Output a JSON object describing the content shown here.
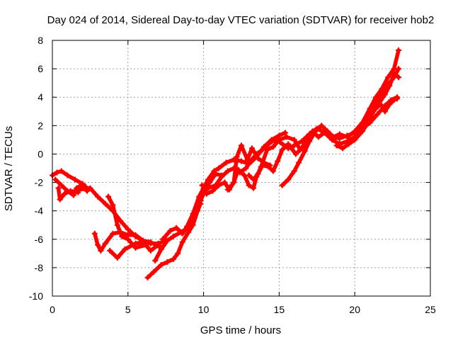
{
  "chart_data": {
    "type": "line",
    "title": "Day 024 of 2014, Sidereal Day-to-day VTEC variation (SDTVAR) for receiver hob2",
    "xlabel": "GPS time / hours",
    "ylabel": "SDTVAR / TECUs",
    "xlim": [
      0,
      25
    ],
    "ylim": [
      -10,
      8
    ],
    "xticks": [
      0,
      5,
      10,
      15,
      20,
      25
    ],
    "yticks": [
      -10,
      -8,
      -6,
      -4,
      -2,
      0,
      2,
      4,
      6,
      8
    ],
    "grid": true,
    "legend": "none",
    "marker": "plus",
    "series_color": "#ff0000",
    "series": [
      {
        "points": [
          [
            0.0,
            -1.5
          ],
          [
            0.3,
            -1.3
          ],
          [
            0.6,
            -1.2
          ],
          [
            1.0,
            -1.5
          ],
          [
            1.5,
            -1.8
          ],
          [
            2.0,
            -2.1
          ],
          [
            2.3,
            -2.6
          ]
        ]
      },
      {
        "points": [
          [
            0.2,
            -1.8
          ],
          [
            0.6,
            -2.2
          ],
          [
            1.0,
            -2.6
          ],
          [
            1.4,
            -2.9
          ],
          [
            1.6,
            -2.4
          ],
          [
            1.9,
            -2.2
          ],
          [
            2.2,
            -2.3
          ]
        ]
      },
      {
        "points": [
          [
            0.4,
            -2.4
          ],
          [
            0.5,
            -3.2
          ],
          [
            0.8,
            -2.8
          ],
          [
            1.2,
            -2.6
          ],
          [
            1.7,
            -2.7
          ]
        ]
      },
      {
        "points": [
          [
            1.8,
            -2.5
          ],
          [
            2.5,
            -2.4
          ],
          [
            3.0,
            -3.0
          ],
          [
            3.5,
            -3.5
          ],
          [
            4.0,
            -4.0
          ],
          [
            4.5,
            -4.7
          ],
          [
            5.0,
            -5.3
          ],
          [
            5.5,
            -5.8
          ],
          [
            6.0,
            -6.1
          ],
          [
            6.5,
            -6.3
          ],
          [
            7.0,
            -6.3
          ],
          [
            7.5,
            -6.1
          ]
        ]
      },
      {
        "points": [
          [
            2.8,
            -5.6
          ],
          [
            3.0,
            -6.4
          ],
          [
            3.2,
            -6.8
          ],
          [
            3.5,
            -6.3
          ],
          [
            4.0,
            -5.6
          ],
          [
            4.5,
            -5.5
          ],
          [
            5.0,
            -5.7
          ],
          [
            5.5,
            -5.7
          ],
          [
            6.0,
            -6.1
          ],
          [
            6.5,
            -6.2
          ],
          [
            7.2,
            -6.6
          ]
        ]
      },
      {
        "points": [
          [
            3.7,
            -3.0
          ],
          [
            4.0,
            -3.6
          ],
          [
            4.3,
            -5.0
          ],
          [
            4.6,
            -5.8
          ],
          [
            5.0,
            -6.0
          ],
          [
            5.5,
            -6.6
          ],
          [
            6.2,
            -6.4
          ]
        ]
      },
      {
        "points": [
          [
            3.8,
            -6.8
          ],
          [
            4.3,
            -7.3
          ],
          [
            4.8,
            -6.7
          ],
          [
            5.5,
            -6.3
          ],
          [
            6.0,
            -6.2
          ],
          [
            6.5,
            -6.8
          ],
          [
            7.0,
            -6.4
          ]
        ]
      },
      {
        "points": [
          [
            6.3,
            -8.7
          ],
          [
            6.7,
            -8.3
          ],
          [
            7.2,
            -7.8
          ],
          [
            7.6,
            -7.6
          ],
          [
            8.0,
            -7.4
          ],
          [
            8.3,
            -7.0
          ],
          [
            8.6,
            -6.2
          ],
          [
            9.0,
            -5.5
          ],
          [
            9.3,
            -5.0
          ],
          [
            9.6,
            -4.0
          ],
          [
            9.8,
            -3.5
          ]
        ]
      },
      {
        "points": [
          [
            6.8,
            -7.5
          ],
          [
            7.2,
            -6.7
          ],
          [
            7.6,
            -6.1
          ],
          [
            8.0,
            -5.8
          ],
          [
            8.5,
            -5.5
          ],
          [
            9.0,
            -5.2
          ],
          [
            9.4,
            -4.5
          ],
          [
            9.8,
            -3.3
          ],
          [
            10.0,
            -2.8
          ],
          [
            10.4,
            -2.0
          ],
          [
            10.8,
            -1.4
          ],
          [
            11.2,
            -1.5
          ]
        ]
      },
      {
        "points": [
          [
            7.3,
            -6.0
          ],
          [
            7.8,
            -5.4
          ],
          [
            8.2,
            -5.2
          ],
          [
            8.6,
            -5.6
          ],
          [
            8.9,
            -5.1
          ],
          [
            9.3,
            -4.2
          ],
          [
            9.7,
            -3.0
          ],
          [
            10.0,
            -2.4
          ],
          [
            10.3,
            -1.8
          ],
          [
            10.7,
            -1.2
          ],
          [
            11.0,
            -1.0
          ],
          [
            11.5,
            -0.6
          ],
          [
            12.0,
            -0.4
          ],
          [
            12.5,
            -0.5
          ],
          [
            13.0,
            -0.7
          ],
          [
            13.5,
            -0.2
          ],
          [
            14.0,
            0.5
          ],
          [
            14.5,
            1.0
          ],
          [
            15.0,
            1.3
          ],
          [
            15.4,
            1.5
          ]
        ]
      },
      {
        "points": [
          [
            9.9,
            -2.2
          ],
          [
            10.3,
            -2.4
          ],
          [
            10.8,
            -2.2
          ],
          [
            11.2,
            -1.6
          ],
          [
            11.6,
            -1.2
          ],
          [
            12.0,
            -1.0
          ],
          [
            12.4,
            -1.3
          ],
          [
            12.8,
            -1.0
          ],
          [
            13.1,
            -0.5
          ],
          [
            13.5,
            0.0
          ],
          [
            13.9,
            0.3
          ],
          [
            14.3,
            0.7
          ],
          [
            14.7,
            1.0
          ],
          [
            15.1,
            0.8
          ],
          [
            15.6,
            0.4
          ],
          [
            16.0,
            0.6
          ],
          [
            16.5,
            0.9
          ],
          [
            17.0,
            1.4
          ],
          [
            17.5,
            1.8
          ],
          [
            18.0,
            1.5
          ],
          [
            18.5,
            1.2
          ],
          [
            19.0,
            1.1
          ],
          [
            19.5,
            1.3
          ],
          [
            20.0,
            1.5
          ],
          [
            20.5,
            2.0
          ],
          [
            21.0,
            2.6
          ],
          [
            21.5,
            3.4
          ],
          [
            22.0,
            4.2
          ],
          [
            22.3,
            4.8
          ],
          [
            22.6,
            5.6
          ],
          [
            22.9,
            5.4
          ]
        ]
      },
      {
        "points": [
          [
            10.2,
            -2.8
          ],
          [
            10.6,
            -2.6
          ],
          [
            11.0,
            -2.2
          ],
          [
            11.4,
            -2.0
          ],
          [
            11.7,
            -2.5
          ],
          [
            12.0,
            -2.0
          ],
          [
            12.3,
            -1.1
          ],
          [
            12.7,
            -1.5
          ],
          [
            13.0,
            -2.2
          ],
          [
            13.3,
            -2.4
          ],
          [
            13.5,
            -1.6
          ],
          [
            13.8,
            -0.9
          ],
          [
            14.2,
            0.3
          ],
          [
            14.6,
            0.5
          ],
          [
            15.0,
            1.0
          ],
          [
            15.5,
            1.2
          ],
          [
            16.0,
            1.0
          ],
          [
            16.4,
            0.3
          ],
          [
            16.8,
            0.9
          ],
          [
            17.2,
            1.6
          ],
          [
            17.6,
            1.2
          ],
          [
            18.0,
            1.5
          ],
          [
            18.5,
            1.0
          ],
          [
            19.0,
            0.7
          ],
          [
            19.5,
            0.9
          ],
          [
            20.0,
            1.2
          ],
          [
            20.5,
            1.8
          ],
          [
            21.0,
            2.2
          ],
          [
            21.5,
            2.8
          ],
          [
            22.0,
            3.4
          ],
          [
            22.4,
            3.8
          ],
          [
            22.8,
            4.0
          ]
        ]
      },
      {
        "points": [
          [
            11.6,
            -2.5
          ],
          [
            12.0,
            -2.0
          ],
          [
            12.2,
            -0.2
          ],
          [
            12.5,
            0.6
          ],
          [
            12.9,
            -0.4
          ],
          [
            13.2,
            0.4
          ],
          [
            13.6,
            -0.3
          ],
          [
            14.0,
            -0.6
          ],
          [
            14.4,
            -0.8
          ]
        ]
      },
      {
        "points": [
          [
            13.0,
            -1.5
          ],
          [
            13.3,
            -1.8
          ],
          [
            13.6,
            -1.4
          ],
          [
            13.9,
            -0.8
          ],
          [
            14.3,
            -0.9
          ],
          [
            14.6,
            -1.2
          ],
          [
            14.9,
            -0.5
          ],
          [
            15.2,
            0.3
          ],
          [
            15.6,
            0.7
          ],
          [
            16.1,
            0.0
          ],
          [
            16.5,
            0.4
          ]
        ]
      },
      {
        "points": [
          [
            15.2,
            -2.2
          ],
          [
            15.6,
            -1.8
          ],
          [
            16.0,
            -1.2
          ],
          [
            16.3,
            -0.6
          ],
          [
            16.7,
            0.2
          ],
          [
            17.0,
            0.9
          ],
          [
            17.4,
            1.6
          ],
          [
            17.8,
            2.0
          ],
          [
            18.2,
            1.6
          ],
          [
            18.6,
            1.2
          ],
          [
            19.0,
            1.4
          ],
          [
            19.5,
            1.2
          ],
          [
            20.0,
            1.6
          ],
          [
            20.5,
            2.2
          ],
          [
            21.0,
            3.2
          ],
          [
            21.4,
            4.0
          ],
          [
            21.8,
            4.6
          ],
          [
            22.2,
            5.4
          ],
          [
            22.6,
            6.0
          ],
          [
            22.9,
            7.3
          ]
        ]
      },
      {
        "points": [
          [
            18.8,
            0.6
          ],
          [
            19.2,
            0.4
          ],
          [
            19.6,
            0.7
          ],
          [
            20.0,
            1.0
          ],
          [
            20.5,
            1.6
          ],
          [
            21.0,
            2.4
          ],
          [
            21.5,
            3.8
          ],
          [
            21.8,
            4.2
          ],
          [
            22.2,
            4.9
          ],
          [
            22.6,
            5.4
          ],
          [
            22.9,
            6.0
          ]
        ]
      },
      {
        "points": [
          [
            21.0,
            2.8
          ],
          [
            21.4,
            3.2
          ],
          [
            21.7,
            3.5
          ],
          [
            22.0,
            3.0
          ],
          [
            22.3,
            3.5
          ],
          [
            22.6,
            3.8
          ],
          [
            22.8,
            3.9
          ]
        ]
      }
    ]
  }
}
